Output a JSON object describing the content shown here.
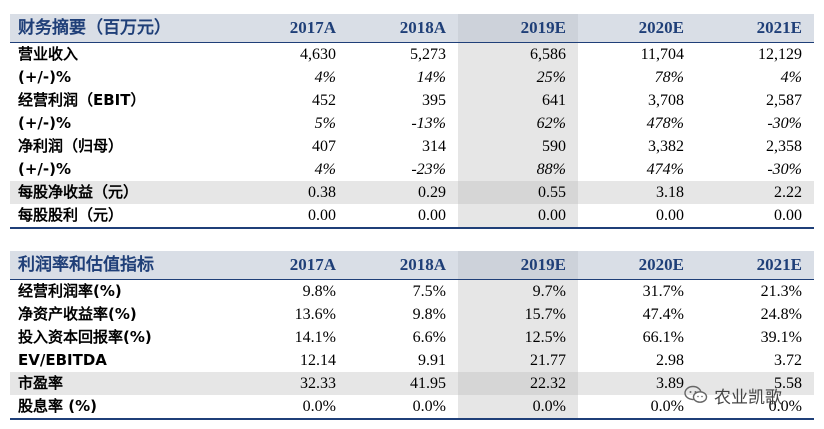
{
  "table1": {
    "header": [
      "财务摘要（百万元）",
      "2017A",
      "2018A",
      "2019E",
      "2020E",
      "2021E"
    ],
    "rows": [
      {
        "label": "营业收入",
        "values": [
          "4,630",
          "5,273",
          "6,586",
          "11,704",
          "12,129"
        ]
      },
      {
        "label": "(+/-)%",
        "values": [
          "4%",
          "14%",
          "25%",
          "78%",
          "4%"
        ]
      },
      {
        "label": "经营利润（EBIT）",
        "values": [
          "452",
          "395",
          "641",
          "3,708",
          "2,587"
        ]
      },
      {
        "label": "(+/-)%",
        "values": [
          "5%",
          "-13%",
          "62%",
          "478%",
          "-30%"
        ]
      },
      {
        "label": "净利润（归母）",
        "values": [
          "407",
          "314",
          "590",
          "3,382",
          "2,358"
        ]
      },
      {
        "label": "(+/-)%",
        "values": [
          "4%",
          "-23%",
          "88%",
          "474%",
          "-30%"
        ]
      },
      {
        "label": "每股净收益（元）",
        "values": [
          "0.38",
          "0.29",
          "0.55",
          "3.18",
          "2.22"
        ]
      },
      {
        "label": "每股股利（元）",
        "values": [
          "0.00",
          "0.00",
          "0.00",
          "0.00",
          "0.00"
        ]
      }
    ]
  },
  "table2": {
    "header": [
      "利润率和估值指标",
      "2017A",
      "2018A",
      "2019E",
      "2020E",
      "2021E"
    ],
    "rows": [
      {
        "label": "经营利润率(%)",
        "values": [
          "9.8%",
          "7.5%",
          "9.7%",
          "31.7%",
          "21.3%"
        ]
      },
      {
        "label": "净资产收益率(%)",
        "values": [
          "13.6%",
          "9.8%",
          "15.7%",
          "47.4%",
          "24.8%"
        ]
      },
      {
        "label": "投入资本回报率(%)",
        "values": [
          "14.1%",
          "6.6%",
          "12.5%",
          "66.1%",
          "39.1%"
        ]
      },
      {
        "label": "EV/EBITDA",
        "values": [
          "12.14",
          "9.91",
          "21.77",
          "2.98",
          "3.72"
        ]
      },
      {
        "label": "市盈率",
        "values": [
          "32.33",
          "41.95",
          "22.32",
          "3.89",
          "5.58"
        ]
      },
      {
        "label": "股息率 (%)",
        "values": [
          "0.0%",
          "0.0%",
          "0.0%",
          "0.0%",
          "0.0%"
        ]
      }
    ]
  },
  "watermark": {
    "text": "农业凯歌",
    "icon": "wechat-icon"
  }
}
